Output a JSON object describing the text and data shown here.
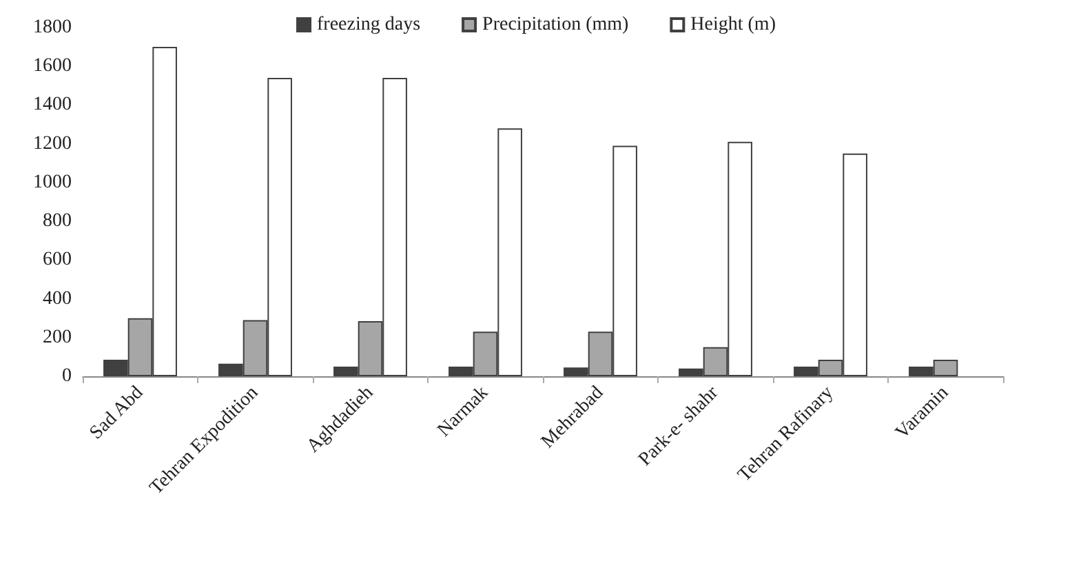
{
  "chart_data": {
    "type": "bar",
    "categories": [
      "Sad Abd",
      "Tehran Expodition",
      "Aghdadieh",
      "Narmak",
      "Mehrabad",
      "Park-e- shahr",
      "Tehran Rafinary",
      "Varamin"
    ],
    "series": [
      {
        "name": "freezing days",
        "color": "#404040",
        "values": [
          85,
          65,
          50,
          50,
          45,
          40,
          50,
          50
        ]
      },
      {
        "name": "Precipitation (mm)",
        "color": "#a6a6a6",
        "values": [
          300,
          290,
          285,
          230,
          230,
          150,
          85,
          85
        ]
      },
      {
        "name": "Height (m)",
        "color": "#ffffff",
        "values": [
          1700,
          1540,
          1540,
          1280,
          1190,
          1210,
          1150,
          null
        ]
      }
    ],
    "ylim": [
      0,
      1800
    ],
    "yticks": [
      0,
      200,
      400,
      600,
      800,
      1000,
      1200,
      1400,
      1600,
      1800
    ],
    "grid": false,
    "legend": "top"
  }
}
